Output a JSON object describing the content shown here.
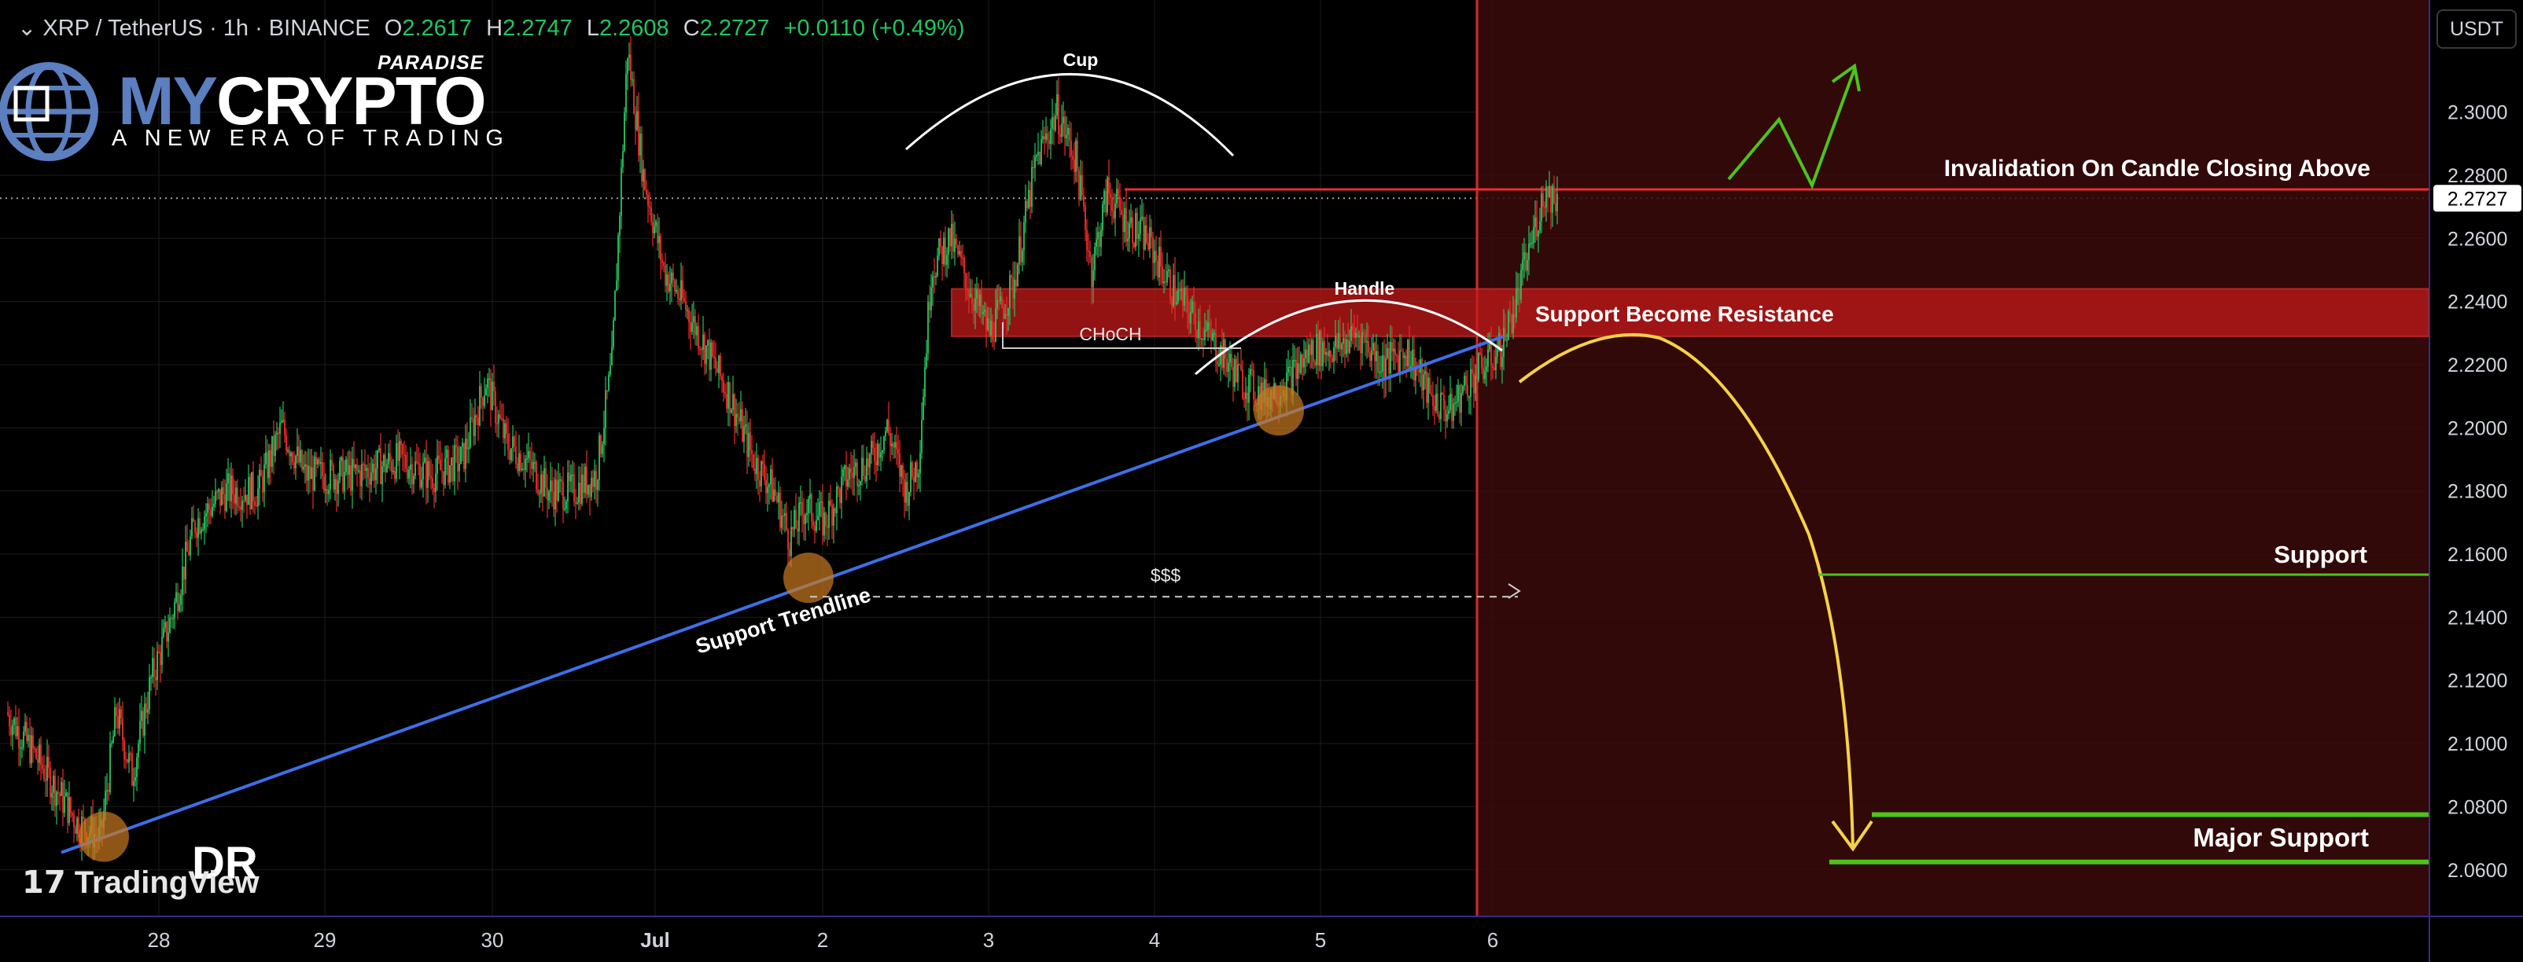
{
  "legend": {
    "symbol": "XRP / TetherUS · 1h · BINANCE",
    "open_label": "O",
    "open": "2.2617",
    "high_label": "H",
    "high": "2.2747",
    "low_label": "L",
    "low": "2.2608",
    "close_label": "C",
    "close": "2.2727",
    "change": "+0.0110 (+0.49%)"
  },
  "branding": {
    "logo_my": "MY",
    "logo_crypto": "CRYPTO",
    "logo_paradise": "PARADISE",
    "tagline": "A NEW ERA OF TRADING",
    "watermark": "TradingView",
    "author_initials": "DR"
  },
  "price_axis": {
    "currency_button": "USDT",
    "current_price_label": "2.2727"
  },
  "annotations": {
    "cup": "Cup",
    "handle": "Handle",
    "choch": "CHoCH",
    "liquidity": "$$$",
    "support_trendline": "Support Trendline",
    "invalidation": "Invalidation On Candle Closing Above",
    "support_resistance": "Support Become Resistance",
    "support": "Support",
    "major_support": "Major Support"
  },
  "colors": {
    "up": "#22c55e",
    "down": "#ef2b2b",
    "zone": "#c41a1a",
    "trendline": "#3d6fe6",
    "projection": "#f5d245",
    "bull_path": "#4cc41a",
    "support_line": "#4cc41a",
    "touch_marker": "#c97a1f"
  },
  "chart_data": {
    "type": "candlestick",
    "timeframe": "1h",
    "symbol": "XRPUSDT",
    "y_ticks": [
      2.06,
      2.08,
      2.1,
      2.12,
      2.14,
      2.16,
      2.18,
      2.2,
      2.22,
      2.24,
      2.26,
      2.28,
      2.3
    ],
    "ylim": [
      2.0455,
      2.3355
    ],
    "x_ticks": [
      "28",
      "29",
      "30",
      "Jul",
      "2",
      "3",
      "4",
      "5",
      "6"
    ],
    "last_price": 2.2727,
    "invalidation_level": 2.2755,
    "resistance_zone": [
      2.229,
      2.244
    ],
    "support_level": 2.1535,
    "major_support_levels": [
      2.0775,
      2.0625
    ],
    "trendline": {
      "start": [
        "27 Jun",
        2.0655
      ],
      "end": [
        "5 Jul",
        2.229
      ]
    },
    "candle_path_anchors": [
      [
        0,
        2.11
      ],
      [
        20,
        2.095
      ],
      [
        45,
        2.075
      ],
      [
        60,
        2.07
      ],
      [
        70,
        2.11
      ],
      [
        80,
        2.09
      ],
      [
        92,
        2.12
      ],
      [
        105,
        2.14
      ],
      [
        120,
        2.17
      ],
      [
        140,
        2.18
      ],
      [
        160,
        2.18
      ],
      [
        175,
        2.2
      ],
      [
        190,
        2.185
      ],
      [
        220,
        2.185
      ],
      [
        250,
        2.19
      ],
      [
        270,
        2.185
      ],
      [
        290,
        2.19
      ],
      [
        305,
        2.215
      ],
      [
        318,
        2.195
      ],
      [
        330,
        2.19
      ],
      [
        345,
        2.18
      ],
      [
        360,
        2.18
      ],
      [
        375,
        2.185
      ],
      [
        385,
        2.22
      ],
      [
        395,
        2.32
      ],
      [
        405,
        2.28
      ],
      [
        418,
        2.25
      ],
      [
        430,
        2.24
      ],
      [
        445,
        2.225
      ],
      [
        460,
        2.21
      ],
      [
        475,
        2.19
      ],
      [
        488,
        2.18
      ],
      [
        498,
        2.165
      ],
      [
        508,
        2.175
      ],
      [
        520,
        2.17
      ],
      [
        535,
        2.185
      ],
      [
        550,
        2.19
      ],
      [
        560,
        2.2
      ],
      [
        572,
        2.18
      ],
      [
        580,
        2.19
      ],
      [
        588,
        2.25
      ],
      [
        600,
        2.26
      ],
      [
        612,
        2.245
      ],
      [
        625,
        2.23
      ],
      [
        640,
        2.245
      ],
      [
        655,
        2.285
      ],
      [
        668,
        2.3
      ],
      [
        680,
        2.285
      ],
      [
        690,
        2.25
      ],
      [
        700,
        2.275
      ],
      [
        712,
        2.265
      ],
      [
        725,
        2.26
      ],
      [
        740,
        2.245
      ],
      [
        755,
        2.235
      ],
      [
        770,
        2.225
      ],
      [
        785,
        2.215
      ],
      [
        800,
        2.21
      ],
      [
        815,
        2.215
      ],
      [
        830,
        2.225
      ],
      [
        845,
        2.225
      ],
      [
        860,
        2.23
      ],
      [
        875,
        2.22
      ],
      [
        890,
        2.225
      ],
      [
        905,
        2.21
      ],
      [
        918,
        2.205
      ],
      [
        930,
        2.215
      ],
      [
        940,
        2.22
      ],
      [
        950,
        2.225
      ],
      [
        960,
        2.24
      ],
      [
        970,
        2.26
      ],
      [
        978,
        2.275
      ],
      [
        986,
        2.2727
      ]
    ]
  }
}
